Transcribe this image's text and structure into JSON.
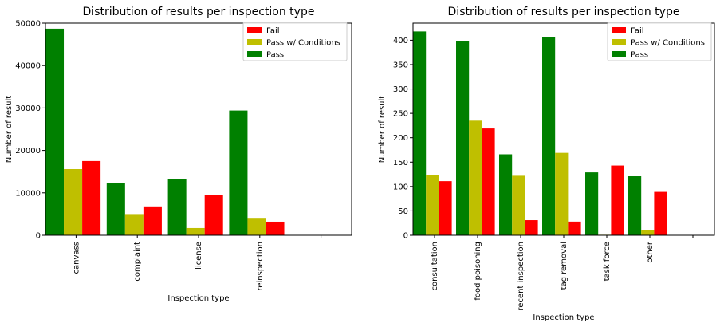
{
  "colors": {
    "Fail": "#ff0000",
    "Pass w/ Conditions": "#bfbf00",
    "Pass": "#008000"
  },
  "chart_data": [
    {
      "type": "bar",
      "title": "Distribution of results per inspection type",
      "xlabel": "Inspection type",
      "ylabel": "Number of result",
      "ylim": [
        0,
        50000
      ],
      "yticks": [
        0,
        10000,
        20000,
        30000,
        40000,
        50000
      ],
      "legend_position": "top-right",
      "categories": [
        "canvass",
        "complaint",
        "license",
        "reinspection"
      ],
      "series": [
        {
          "name": "Fail",
          "values": [
            17500,
            6800,
            9400,
            3200
          ]
        },
        {
          "name": "Pass w/ Conditions",
          "values": [
            15600,
            5000,
            1700,
            4100
          ]
        },
        {
          "name": "Pass",
          "values": [
            48700,
            12400,
            13200,
            29400
          ]
        }
      ]
    },
    {
      "type": "bar",
      "title": "Distribution of results per inspection type",
      "xlabel": "Inspection type",
      "ylabel": "Number of result",
      "ylim": [
        0,
        435
      ],
      "yticks": [
        0,
        50,
        100,
        150,
        200,
        250,
        300,
        350,
        400
      ],
      "legend_position": "top-right",
      "categories": [
        "consultation",
        "food poisoning",
        "recent inspection",
        "tag removal",
        "task force",
        "other"
      ],
      "series": [
        {
          "name": "Fail",
          "values": [
            111,
            219,
            31,
            28,
            143,
            89
          ]
        },
        {
          "name": "Pass w/ Conditions",
          "values": [
            123,
            235,
            122,
            169,
            1,
            11
          ]
        },
        {
          "name": "Pass",
          "values": [
            418,
            399,
            166,
            406,
            129,
            121
          ]
        }
      ]
    }
  ]
}
